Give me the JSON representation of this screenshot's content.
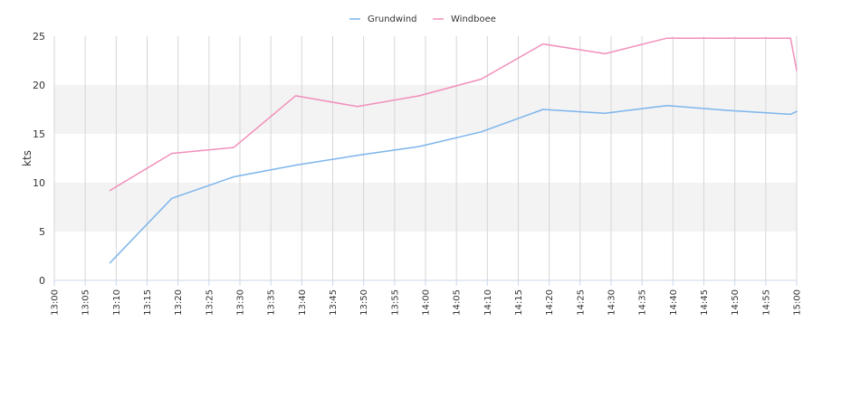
{
  "chart_data": {
    "type": "line",
    "title": "",
    "xlabel": "",
    "ylabel": "kts",
    "ylim": [
      0,
      25
    ],
    "y_ticks": [
      0,
      5,
      10,
      15,
      20,
      25
    ],
    "x_ticks": [
      "13:00",
      "13:05",
      "13:10",
      "13:15",
      "13:20",
      "13:25",
      "13:30",
      "13:35",
      "13:40",
      "13:45",
      "13:50",
      "13:55",
      "14:00",
      "14:05",
      "14:10",
      "14:15",
      "14:20",
      "14:25",
      "14:30",
      "14:35",
      "14:40",
      "14:45",
      "14:50",
      "14:55",
      "15:00"
    ],
    "grid": "vertical lines at each tick, alternating horizontal bands",
    "legend_position": "top-center",
    "series": [
      {
        "name": "Grundwind",
        "color": "#7cb5ec",
        "points": [
          [
            "13:09",
            1.8
          ],
          [
            "13:19",
            8.4
          ],
          [
            "13:29",
            10.6
          ],
          [
            "13:39",
            11.8
          ],
          [
            "13:49",
            12.8
          ],
          [
            "13:59",
            13.7
          ],
          [
            "14:09",
            15.2
          ],
          [
            "14:19",
            17.5
          ],
          [
            "14:29",
            17.1
          ],
          [
            "14:39",
            17.9
          ],
          [
            "14:49",
            17.4
          ],
          [
            "14:59",
            17.0
          ],
          [
            "15:00",
            17.3
          ]
        ]
      },
      {
        "name": "Windboee",
        "color": "#f28fbb",
        "points": [
          [
            "13:09",
            9.2
          ],
          [
            "13:19",
            13.0
          ],
          [
            "13:29",
            13.6
          ],
          [
            "13:39",
            18.9
          ],
          [
            "13:49",
            17.8
          ],
          [
            "13:59",
            18.9
          ],
          [
            "14:09",
            20.6
          ],
          [
            "14:19",
            24.2
          ],
          [
            "14:29",
            23.2
          ],
          [
            "14:39",
            24.8
          ],
          [
            "14:49",
            24.8
          ],
          [
            "14:59",
            24.8
          ],
          [
            "15:00",
            21.5
          ]
        ]
      }
    ]
  }
}
